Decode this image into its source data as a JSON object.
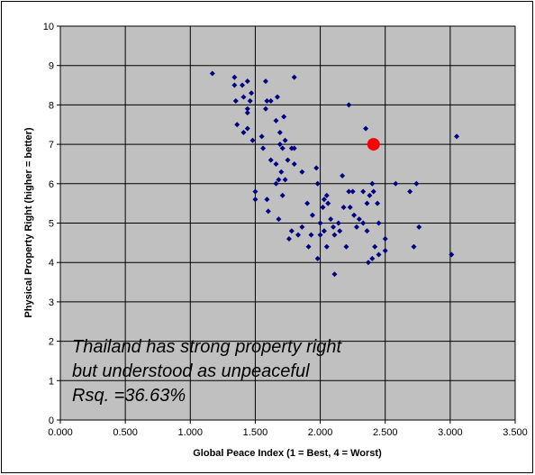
{
  "chart_data": {
    "type": "scatter",
    "title": "",
    "xlabel": "Global Peace Index (1 = Best, 4 = Worst)",
    "ylabel": "Physical Property Right (higher = better)",
    "xlim": [
      0,
      3.5
    ],
    "ylim": [
      0,
      10
    ],
    "x_ticks": [
      0,
      0.5,
      1.0,
      1.5,
      2.0,
      2.5,
      3.0,
      3.5
    ],
    "x_tick_labels": [
      "0.000",
      "0.500",
      "1.000",
      "1.500",
      "2.000",
      "2.500",
      "3.000",
      "3.500"
    ],
    "y_ticks": [
      0,
      1,
      2,
      3,
      4,
      5,
      6,
      7,
      8,
      9,
      10
    ],
    "y_tick_labels": [
      "0",
      "1",
      "2",
      "3",
      "4",
      "5",
      "6",
      "7",
      "8",
      "9",
      "10"
    ],
    "grid": true,
    "plot_background": "#c0c0c0",
    "annotation_lines": [
      "Thailand has strong property right",
      "but understood as unpeaceful",
      "Rsq. =36.63%"
    ],
    "series": [
      {
        "color": "#000080",
        "marker": "diamond",
        "points": [
          [
            1.17,
            8.8
          ],
          [
            1.34,
            8.7
          ],
          [
            1.34,
            8.5
          ],
          [
            1.4,
            8.5
          ],
          [
            1.44,
            8.6
          ],
          [
            1.47,
            8.3
          ],
          [
            1.35,
            8.1
          ],
          [
            1.41,
            8.2
          ],
          [
            1.46,
            8.1
          ],
          [
            1.44,
            7.9
          ],
          [
            1.44,
            7.8
          ],
          [
            1.36,
            7.5
          ],
          [
            1.41,
            7.3
          ],
          [
            1.44,
            7.4
          ],
          [
            1.48,
            7.1
          ],
          [
            1.55,
            7.2
          ],
          [
            1.58,
            7.9
          ],
          [
            1.59,
            8.1
          ],
          [
            1.58,
            8.6
          ],
          [
            1.62,
            8.1
          ],
          [
            1.67,
            8.2
          ],
          [
            1.66,
            7.6
          ],
          [
            1.72,
            7.7
          ],
          [
            1.69,
            7.3
          ],
          [
            1.69,
            7.0
          ],
          [
            1.71,
            6.9
          ],
          [
            1.73,
            7.1
          ],
          [
            1.75,
            6.6
          ],
          [
            1.78,
            6.9
          ],
          [
            1.8,
            6.9
          ],
          [
            1.8,
            8.7
          ],
          [
            1.56,
            6.9
          ],
          [
            1.62,
            6.6
          ],
          [
            1.66,
            6.5
          ],
          [
            1.7,
            6.3
          ],
          [
            1.68,
            6.1
          ],
          [
            1.66,
            6.0
          ],
          [
            1.73,
            6.1
          ],
          [
            1.8,
            6.5
          ],
          [
            1.86,
            6.3
          ],
          [
            1.97,
            6.4
          ],
          [
            1.98,
            6.0
          ],
          [
            1.5,
            5.8
          ],
          [
            1.5,
            5.6
          ],
          [
            1.59,
            5.6
          ],
          [
            1.6,
            5.3
          ],
          [
            1.71,
            5.7
          ],
          [
            1.68,
            5.1
          ],
          [
            1.78,
            4.8
          ],
          [
            1.76,
            4.6
          ],
          [
            1.83,
            4.7
          ],
          [
            1.86,
            4.9
          ],
          [
            1.9,
            5.5
          ],
          [
            1.94,
            5.2
          ],
          [
            1.93,
            4.7
          ],
          [
            1.91,
            4.4
          ],
          [
            1.98,
            4.1
          ],
          [
            2.0,
            4.7
          ],
          [
            2.0,
            5.0
          ],
          [
            2.02,
            5.4
          ],
          [
            2.03,
            5.6
          ],
          [
            2.05,
            5.7
          ],
          [
            2.06,
            5.5
          ],
          [
            2.08,
            5.1
          ],
          [
            2.03,
            4.8
          ],
          [
            2.05,
            4.4
          ],
          [
            2.1,
            4.9
          ],
          [
            2.11,
            4.7
          ],
          [
            2.11,
            3.7
          ],
          [
            2.14,
            5.0
          ],
          [
            2.15,
            4.8
          ],
          [
            2.17,
            6.2
          ],
          [
            2.18,
            5.4
          ],
          [
            2.2,
            4.4
          ],
          [
            2.22,
            5.8
          ],
          [
            2.25,
            5.8
          ],
          [
            2.23,
            5.4
          ],
          [
            2.26,
            5.2
          ],
          [
            2.28,
            4.9
          ],
          [
            2.3,
            5.1
          ],
          [
            2.33,
            5.0
          ],
          [
            2.33,
            5.8
          ],
          [
            2.36,
            5.5
          ],
          [
            2.36,
            4.8
          ],
          [
            2.37,
            4.0
          ],
          [
            2.4,
            4.1
          ],
          [
            2.38,
            5.7
          ],
          [
            2.4,
            6.0
          ],
          [
            2.41,
            5.8
          ],
          [
            2.42,
            4.4
          ],
          [
            2.44,
            5.5
          ],
          [
            2.45,
            4.2
          ],
          [
            2.45,
            5.0
          ],
          [
            2.5,
            4.3
          ],
          [
            2.5,
            4.6
          ],
          [
            2.22,
            8.0
          ],
          [
            2.35,
            7.4
          ],
          [
            2.58,
            6.0
          ],
          [
            2.69,
            5.8
          ],
          [
            2.72,
            4.4
          ],
          [
            2.74,
            6.0
          ],
          [
            2.76,
            4.9
          ],
          [
            3.01,
            4.2
          ],
          [
            3.05,
            7.2
          ]
        ]
      },
      {
        "color": "#ff0000",
        "marker": "circle",
        "points": [
          [
            2.41,
            7.0
          ]
        ]
      }
    ]
  }
}
